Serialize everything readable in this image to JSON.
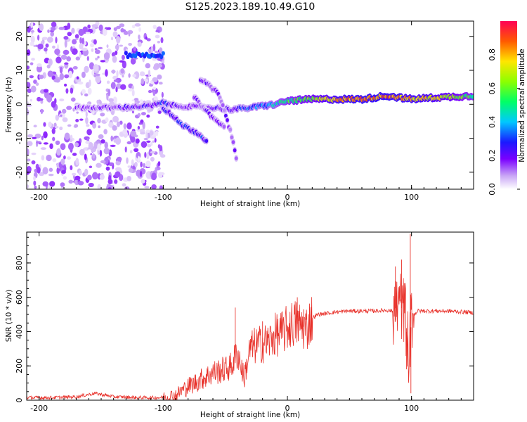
{
  "title": "S125.2023.189.10.49.G10",
  "chart_data": [
    {
      "type": "heatmap",
      "xlabel": "Height of straight line (km)",
      "ylabel": "Frequency (Hz)",
      "xlim": [
        -210,
        150
      ],
      "ylim": [
        -25,
        24.5
      ],
      "x_ticks": [
        -200,
        -100,
        0,
        100
      ],
      "x_tick_labels": [
        "-200",
        "-100",
        "0",
        "100"
      ],
      "y_ticks": [
        -20,
        -10,
        0,
        10,
        20
      ],
      "y_tick_labels": [
        "-20",
        "-10",
        "0",
        "10",
        "20"
      ],
      "colorbar": {
        "label": "Normalized spectral amplitude",
        "range": [
          0,
          1
        ],
        "ticks": [
          0.0,
          0.2,
          0.4,
          0.6,
          0.8
        ],
        "tick_labels": [
          "0.0",
          "0.2",
          "0.4",
          "0.6",
          "0.8"
        ],
        "colors": [
          "#ffffff",
          "#c9a6f6",
          "#7a00ff",
          "#1a1aff",
          "#00c8ff",
          "#00ff66",
          "#8cff00",
          "#ffe600",
          "#ff5a00",
          "#ff0055"
        ]
      },
      "features": [
        {
          "name": "scattered noise",
          "x_range": [
            -210,
            -100
          ],
          "y_range": [
            -25,
            24
          ],
          "amplitude": 0.15
        },
        {
          "name": "line at 15 Hz",
          "x_range": [
            -130,
            -100
          ],
          "y_range": [
            13.5,
            15.5
          ],
          "amplitude": 0.35
        },
        {
          "name": "main track",
          "x": [
            -170,
            -140,
            -110,
            -100,
            -90,
            -60,
            -45,
            -30,
            -10,
            0,
            20,
            40,
            60,
            80,
            100,
            120,
            150
          ],
          "y": [
            -1,
            -1,
            -0.5,
            0.5,
            -0.5,
            -1,
            -1.5,
            -1,
            0,
            1,
            1.5,
            1.5,
            1.5,
            2.5,
            1.5,
            2,
            2.5
          ],
          "amplitude": [
            0.15,
            0.2,
            0.25,
            0.3,
            0.2,
            0.2,
            0.25,
            0.35,
            0.45,
            0.55,
            0.65,
            0.8,
            0.85,
            0.85,
            0.8,
            0.75,
            0.55
          ]
        },
        {
          "name": "descending branch 1",
          "x": [
            -100,
            -85,
            -70,
            -65
          ],
          "y": [
            -1,
            -6,
            -9,
            -11
          ],
          "amplitude": 0.3
        },
        {
          "name": "descending branch 2",
          "x": [
            -70,
            -55,
            -45,
            -40
          ],
          "y": [
            7.5,
            3,
            -9,
            -18
          ],
          "amplitude": 0.2
        },
        {
          "name": "descending branch 3",
          "x": [
            -75,
            -60,
            -50
          ],
          "y": [
            2,
            -4,
            -7
          ],
          "amplitude": 0.2
        }
      ]
    },
    {
      "type": "line",
      "xlabel": "Height of straight line (km)",
      "ylabel": "SNR (10 * v/v)",
      "xlim": [
        -210,
        150
      ],
      "ylim": [
        0,
        980
      ],
      "x_ticks": [
        -200,
        -100,
        0,
        100
      ],
      "x_tick_labels": [
        "-200",
        "-100",
        "0",
        "100"
      ],
      "y_ticks": [
        0,
        200,
        400,
        600,
        800
      ],
      "y_tick_labels": [
        "0",
        "200",
        "400",
        "600",
        "800"
      ],
      "series_color": "#e8312a",
      "x": [
        -210,
        -190,
        -170,
        -155,
        -140,
        -120,
        -100,
        -90,
        -80,
        -70,
        -60,
        -50,
        -45,
        -40,
        -35,
        -30,
        -25,
        -20,
        -15,
        -10,
        -5,
        0,
        5,
        10,
        15,
        20,
        25,
        30,
        40,
        50,
        60,
        70,
        80,
        85,
        90,
        95,
        98,
        100,
        102,
        105,
        110,
        120,
        130,
        140,
        150
      ],
      "y": [
        15,
        15,
        20,
        40,
        20,
        15,
        15,
        30,
        80,
        120,
        160,
        180,
        200,
        280,
        130,
        300,
        320,
        330,
        340,
        380,
        390,
        420,
        450,
        440,
        420,
        480,
        500,
        505,
        515,
        520,
        520,
        520,
        525,
        520,
        560,
        500,
        260,
        480,
        500,
        520,
        520,
        520,
        520,
        515,
        510
      ],
      "spikes": [
        {
          "x": -42,
          "y": 540
        },
        {
          "x": -20,
          "y": 460
        },
        {
          "x": 8,
          "y": 600
        },
        {
          "x": 13,
          "y": 530
        },
        {
          "x": 87,
          "y": 780
        },
        {
          "x": 92,
          "y": 820
        },
        {
          "x": 99,
          "y": 970
        },
        {
          "x": 99.5,
          "y": 40
        },
        {
          "x": 96,
          "y": 180
        }
      ]
    }
  ]
}
